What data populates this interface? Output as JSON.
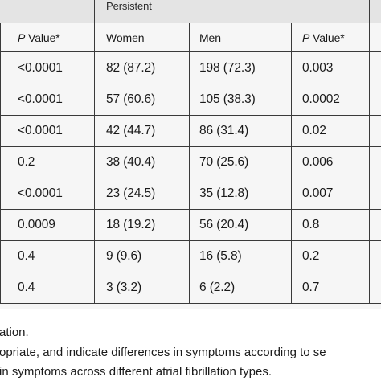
{
  "table": {
    "group_header": "Persistent",
    "columns": {
      "left_pvalue": {
        "italic": "P",
        "rest": " Value*"
      },
      "women": "Women",
      "men": "Men",
      "right_pvalue": {
        "italic": "P",
        "rest": " Value*"
      }
    },
    "rows": [
      {
        "p1": "<0.0001",
        "women": "82 (87.2)",
        "men": "198 (72.3)",
        "p2": "0.003"
      },
      {
        "p1": "<0.0001",
        "women": "57 (60.6)",
        "men": "105 (38.3)",
        "p2": "0.0002"
      },
      {
        "p1": "<0.0001",
        "women": "42 (44.7)",
        "men": "86 (31.4)",
        "p2": "0.02"
      },
      {
        "p1": "0.2",
        "women": "38 (40.4)",
        "men": "70 (25.6)",
        "p2": "0.006"
      },
      {
        "p1": "<0.0001",
        "women": "23 (24.5)",
        "men": "35 (12.8)",
        "p2": "0.007"
      },
      {
        "p1": "0.0009",
        "women": "18 (19.2)",
        "men": "56 (20.4)",
        "p2": "0.8"
      },
      {
        "p1": "0.4",
        "women": "9 (9.6)",
        "men": "16 (5.8)",
        "p2": "0.2"
      },
      {
        "p1": "0.4",
        "women": "3 (3.2)",
        "men": "6 (2.2)",
        "p2": "0.7"
      }
    ]
  },
  "footnotes": [
    "ation.",
    "opriate, and indicate differences in symptoms according to se",
    " in symptoms across different atrial fibrillation types."
  ]
}
